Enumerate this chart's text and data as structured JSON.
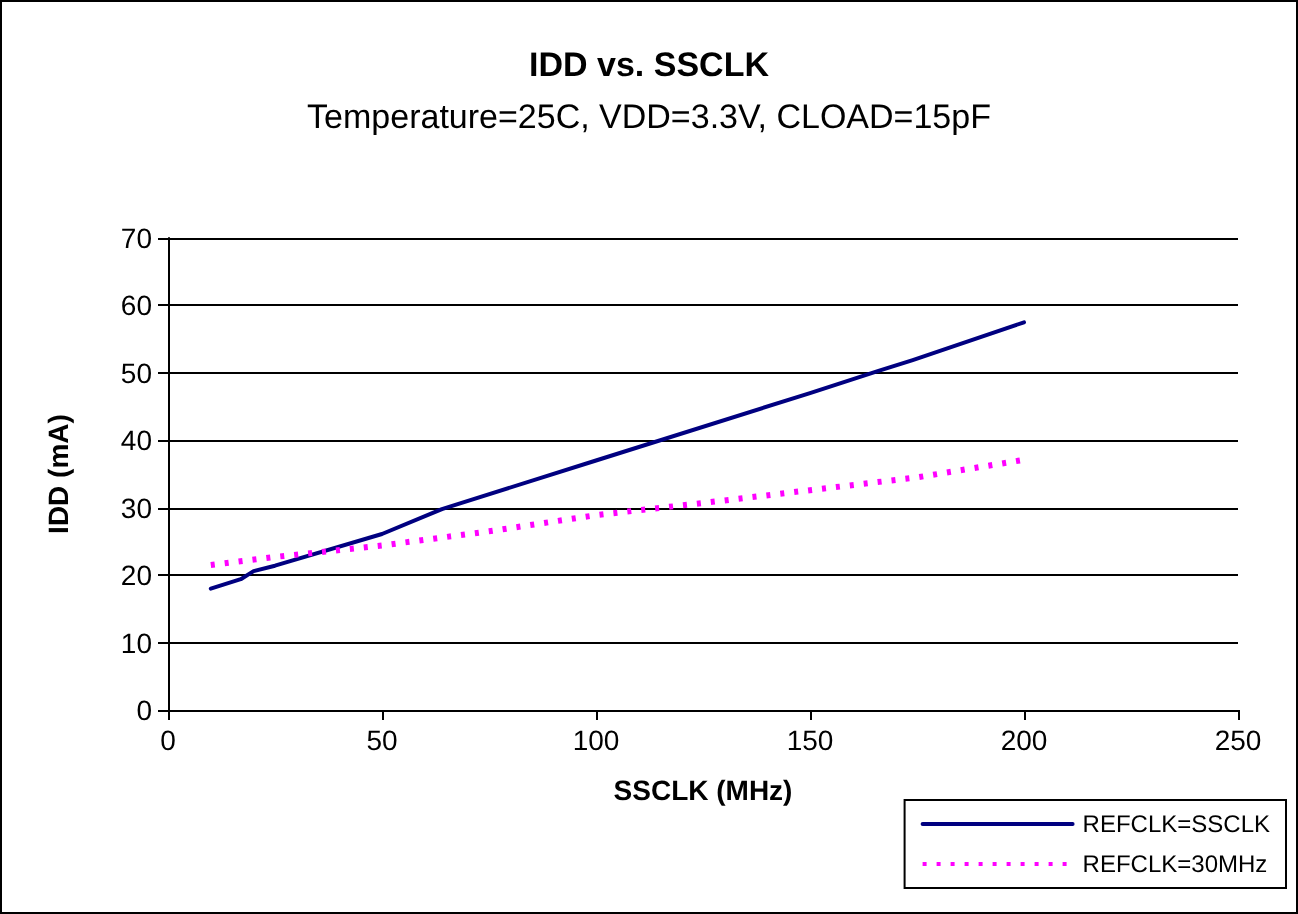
{
  "chart_data": {
    "type": "line",
    "title": "IDD vs. SSCLK",
    "subtitle": "Temperature=25C, VDD=3.3V, CLOAD=15pF",
    "xlabel": "SSCLK (MHz)",
    "ylabel": "IDD (mA)",
    "xlim": [
      0,
      250
    ],
    "xticks": [
      0,
      50,
      100,
      150,
      200,
      250
    ],
    "ylim": [
      0,
      70
    ],
    "yticks": [
      0,
      10,
      20,
      30,
      40,
      50,
      60,
      70
    ],
    "grid": "y",
    "legend": "bottom right",
    "marker": "none",
    "series": [
      {
        "name": "REFCLK=SSCLK",
        "color": "#000080",
        "line_style": "solid",
        "x": [
          10,
          17,
          20,
          25,
          50,
          64,
          100,
          150,
          166,
          174,
          200
        ],
        "values": [
          18,
          19.4,
          20.6,
          21.4,
          26.1,
          29.8,
          37,
          47,
          50.3,
          51.9,
          57.5
        ]
      },
      {
        "name": "REFCLK=30MHz",
        "color": "#ff00ff",
        "line_style": "dotted",
        "x": [
          10,
          25,
          50,
          75,
          100,
          125,
          150,
          175,
          200
        ],
        "values": [
          21.5,
          22.7,
          24.4,
          26.5,
          28.9,
          30.7,
          32.6,
          34.5,
          37.1
        ]
      }
    ]
  }
}
